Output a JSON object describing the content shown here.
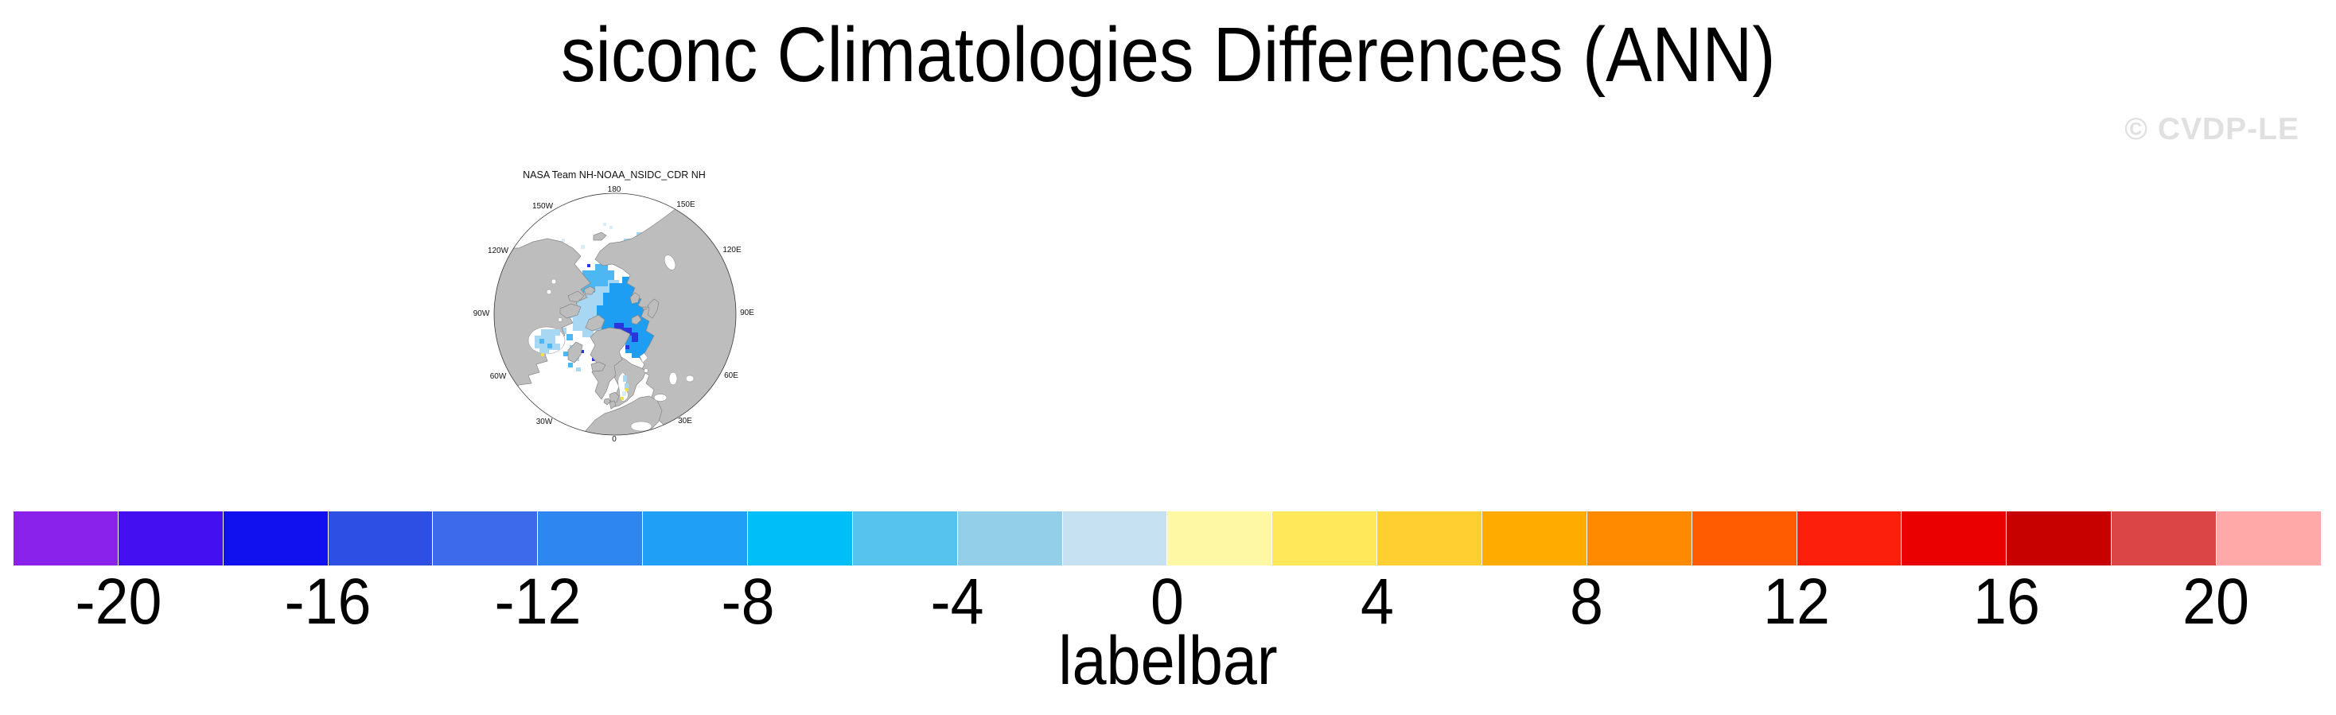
{
  "title": "siconc Climatologies Differences (ANN)",
  "watermark": "© CVDP-LE",
  "map_panel": {
    "title": "NASA Team NH-NOAA_NSIDC_CDR NH",
    "lon_labels": [
      "180",
      "150E",
      "120E",
      "90E",
      "60E",
      "30E",
      "0",
      "30W",
      "60W",
      "90W",
      "120W",
      "150W"
    ],
    "land_color": "#bdbdbd",
    "ocean_color": "#ffffff"
  },
  "labelbar": {
    "caption": "labelbar",
    "tick_labels": [
      "-20",
      "-16",
      "-12",
      "-8",
      "-4",
      "0",
      "4",
      "8",
      "12",
      "16",
      "20"
    ]
  },
  "chart_data": {
    "type": "heatmap",
    "title": "siconc Climatologies Differences (ANN)",
    "panel_title": "NASA Team NH-NOAA_NSIDC_CDR NH",
    "projection": "north polar stereographic",
    "legend_position": "bottom",
    "grid": false,
    "colorbar": {
      "caption": "labelbar",
      "ticks": [
        -20,
        -16,
        -12,
        -8,
        -4,
        0,
        4,
        8,
        12,
        16,
        20
      ],
      "values_per_box": 2,
      "box_colors": [
        "#8b22eb",
        "#4410f2",
        "#1111f0",
        "#2e4fe4",
        "#3c6aea",
        "#2e87f0",
        "#1fa0f6",
        "#00bff8",
        "#55c3ee",
        "#93cfe9",
        "#c6e2f2",
        "#fef8a4",
        "#ffe95a",
        "#ffce30",
        "#ffab00",
        "#ff8a00",
        "#ff5b00",
        "#fb1f0c",
        "#eb0000",
        "#c70000",
        "#db4545",
        "#ffa9a9"
      ]
    },
    "map_ice_difference_colors": {
      "pale": "#d8ecf9",
      "light": "#a8d7f3",
      "medium": "#4cb7f2",
      "deep": "#1e9ef3",
      "dark": "#2a35e0",
      "positive_spot": "#f0e04d"
    }
  }
}
